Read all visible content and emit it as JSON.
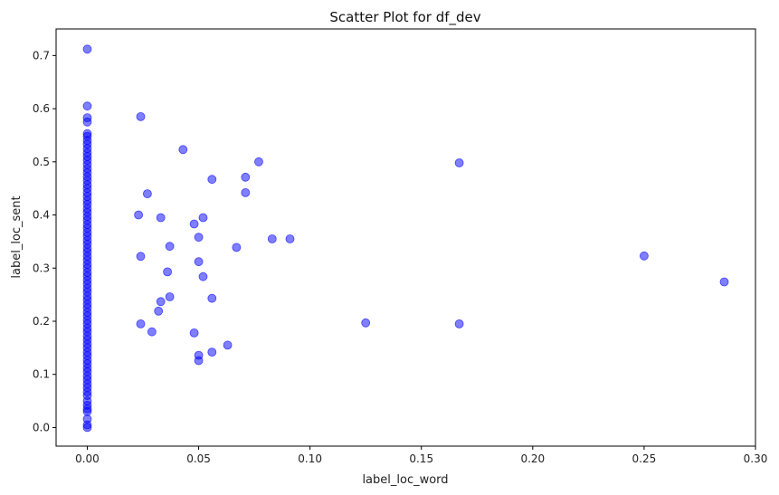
{
  "chart_data": {
    "type": "scatter",
    "title": "Scatter Plot for df_dev",
    "xlabel": "label_loc_word",
    "ylabel": "label_loc_sent",
    "xlim": [
      -0.014,
      0.3
    ],
    "ylim": [
      -0.035,
      0.75
    ],
    "xticks": [
      "0.00",
      "0.05",
      "0.10",
      "0.15",
      "0.20",
      "0.25",
      "0.30"
    ],
    "xtick_values": [
      0,
      0.05,
      0.1,
      0.15,
      0.2,
      0.25,
      0.3
    ],
    "yticks": [
      "0.0",
      "0.1",
      "0.2",
      "0.3",
      "0.4",
      "0.5",
      "0.6",
      "0.7"
    ],
    "ytick_values": [
      0,
      0.1,
      0.2,
      0.3,
      0.4,
      0.5,
      0.6,
      0.7
    ],
    "grid": false,
    "marker_color": "#0000ff",
    "marker_alpha": 0.5,
    "points": [
      {
        "x": 0,
        "y": 0.712
      },
      {
        "x": 0,
        "y": 0.605
      },
      {
        "x": 0,
        "y": 0.583
      },
      {
        "x": 0,
        "y": 0.575
      },
      {
        "x": 0,
        "y": 0.553
      },
      {
        "x": 0,
        "y": 0.548
      },
      {
        "x": 0,
        "y": 0.54
      },
      {
        "x": 0,
        "y": 0.533
      },
      {
        "x": 0,
        "y": 0.525
      },
      {
        "x": 0,
        "y": 0.517
      },
      {
        "x": 0,
        "y": 0.51
      },
      {
        "x": 0,
        "y": 0.503
      },
      {
        "x": 0,
        "y": 0.495
      },
      {
        "x": 0,
        "y": 0.487
      },
      {
        "x": 0,
        "y": 0.48
      },
      {
        "x": 0,
        "y": 0.472
      },
      {
        "x": 0,
        "y": 0.465
      },
      {
        "x": 0,
        "y": 0.457
      },
      {
        "x": 0,
        "y": 0.45
      },
      {
        "x": 0,
        "y": 0.442
      },
      {
        "x": 0,
        "y": 0.435
      },
      {
        "x": 0,
        "y": 0.427
      },
      {
        "x": 0,
        "y": 0.42
      },
      {
        "x": 0,
        "y": 0.412
      },
      {
        "x": 0,
        "y": 0.405
      },
      {
        "x": 0,
        "y": 0.397
      },
      {
        "x": 0,
        "y": 0.39
      },
      {
        "x": 0,
        "y": 0.382
      },
      {
        "x": 0,
        "y": 0.375
      },
      {
        "x": 0,
        "y": 0.367
      },
      {
        "x": 0,
        "y": 0.36
      },
      {
        "x": 0,
        "y": 0.352
      },
      {
        "x": 0,
        "y": 0.345
      },
      {
        "x": 0,
        "y": 0.337
      },
      {
        "x": 0,
        "y": 0.33
      },
      {
        "x": 0,
        "y": 0.322
      },
      {
        "x": 0,
        "y": 0.315
      },
      {
        "x": 0,
        "y": 0.307
      },
      {
        "x": 0,
        "y": 0.3
      },
      {
        "x": 0,
        "y": 0.292
      },
      {
        "x": 0,
        "y": 0.285
      },
      {
        "x": 0,
        "y": 0.277
      },
      {
        "x": 0,
        "y": 0.27
      },
      {
        "x": 0,
        "y": 0.262
      },
      {
        "x": 0,
        "y": 0.255
      },
      {
        "x": 0,
        "y": 0.247
      },
      {
        "x": 0,
        "y": 0.24
      },
      {
        "x": 0,
        "y": 0.232
      },
      {
        "x": 0,
        "y": 0.225
      },
      {
        "x": 0,
        "y": 0.217
      },
      {
        "x": 0,
        "y": 0.21
      },
      {
        "x": 0,
        "y": 0.202
      },
      {
        "x": 0,
        "y": 0.195
      },
      {
        "x": 0,
        "y": 0.187
      },
      {
        "x": 0,
        "y": 0.18
      },
      {
        "x": 0,
        "y": 0.172
      },
      {
        "x": 0,
        "y": 0.165
      },
      {
        "x": 0,
        "y": 0.157
      },
      {
        "x": 0,
        "y": 0.15
      },
      {
        "x": 0,
        "y": 0.142
      },
      {
        "x": 0,
        "y": 0.135
      },
      {
        "x": 0,
        "y": 0.127
      },
      {
        "x": 0,
        "y": 0.12
      },
      {
        "x": 0,
        "y": 0.112
      },
      {
        "x": 0,
        "y": 0.105
      },
      {
        "x": 0,
        "y": 0.097
      },
      {
        "x": 0,
        "y": 0.09
      },
      {
        "x": 0,
        "y": 0.082
      },
      {
        "x": 0,
        "y": 0.075
      },
      {
        "x": 0,
        "y": 0.067
      },
      {
        "x": 0,
        "y": 0.06
      },
      {
        "x": 0,
        "y": 0.05
      },
      {
        "x": 0,
        "y": 0.042
      },
      {
        "x": 0,
        "y": 0.035
      },
      {
        "x": 0,
        "y": 0.03
      },
      {
        "x": 0,
        "y": 0.016
      },
      {
        "x": 0,
        "y": 0.005
      },
      {
        "x": 0,
        "y": 0.0
      },
      {
        "x": 0.024,
        "y": 0.585
      },
      {
        "x": 0.043,
        "y": 0.523
      },
      {
        "x": 0.077,
        "y": 0.5
      },
      {
        "x": 0.167,
        "y": 0.498
      },
      {
        "x": 0.071,
        "y": 0.471
      },
      {
        "x": 0.056,
        "y": 0.467
      },
      {
        "x": 0.027,
        "y": 0.44
      },
      {
        "x": 0.071,
        "y": 0.442
      },
      {
        "x": 0.023,
        "y": 0.4
      },
      {
        "x": 0.033,
        "y": 0.395
      },
      {
        "x": 0.052,
        "y": 0.395
      },
      {
        "x": 0.048,
        "y": 0.383
      },
      {
        "x": 0.05,
        "y": 0.358
      },
      {
        "x": 0.083,
        "y": 0.355
      },
      {
        "x": 0.091,
        "y": 0.355
      },
      {
        "x": 0.037,
        "y": 0.341
      },
      {
        "x": 0.067,
        "y": 0.339
      },
      {
        "x": 0.25,
        "y": 0.323
      },
      {
        "x": 0.024,
        "y": 0.322
      },
      {
        "x": 0.05,
        "y": 0.312
      },
      {
        "x": 0.036,
        "y": 0.293
      },
      {
        "x": 0.052,
        "y": 0.284
      },
      {
        "x": 0.286,
        "y": 0.274
      },
      {
        "x": 0.037,
        "y": 0.246
      },
      {
        "x": 0.056,
        "y": 0.243
      },
      {
        "x": 0.033,
        "y": 0.237
      },
      {
        "x": 0.032,
        "y": 0.219
      },
      {
        "x": 0.125,
        "y": 0.197
      },
      {
        "x": 0.024,
        "y": 0.195
      },
      {
        "x": 0.167,
        "y": 0.195
      },
      {
        "x": 0.029,
        "y": 0.18
      },
      {
        "x": 0.048,
        "y": 0.178
      },
      {
        "x": 0.063,
        "y": 0.155
      },
      {
        "x": 0.056,
        "y": 0.142
      },
      {
        "x": 0.05,
        "y": 0.136
      },
      {
        "x": 0.05,
        "y": 0.126
      }
    ]
  }
}
